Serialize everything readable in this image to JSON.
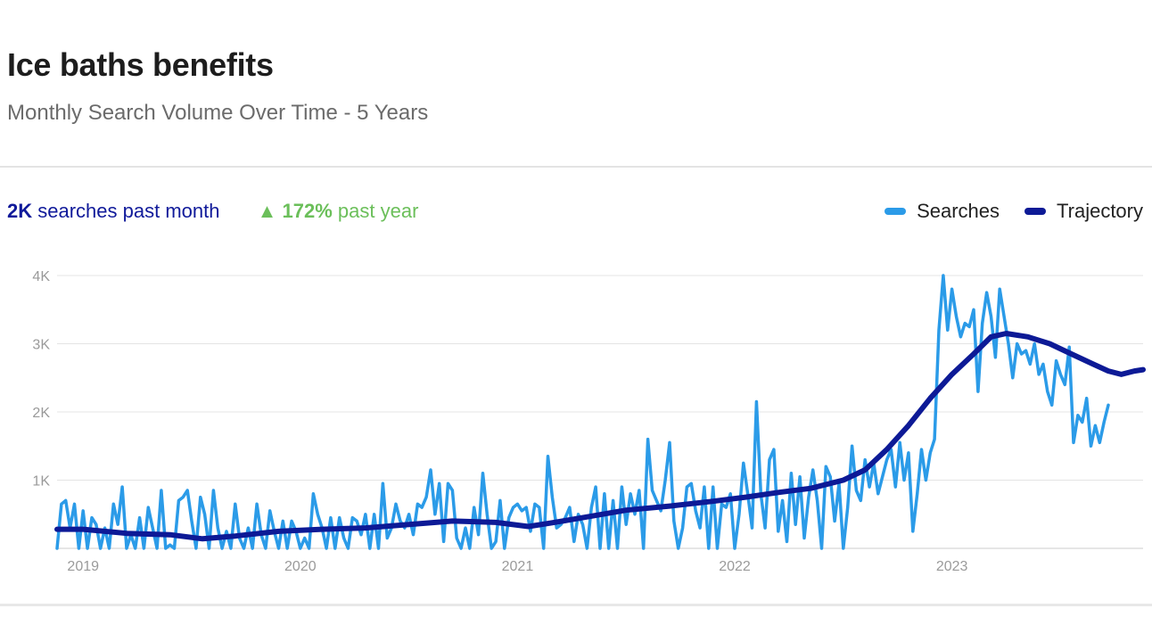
{
  "header": {
    "title": "Ice baths benefits",
    "subtitle": "Monthly Search Volume Over Time - 5 Years"
  },
  "stats": {
    "volume_value": "2K",
    "volume_label": "searches past month",
    "change_arrow": "▲",
    "change_value": "172%",
    "change_label": "past year"
  },
  "colors": {
    "searches": "#2b9be8",
    "trajectory": "#0d1a96",
    "grid": "#e4e4e4",
    "axis_text": "#9a9a9a"
  },
  "chart_data": {
    "type": "line",
    "x_unit": "decimal-year",
    "x_range": [
      2018.88,
      2023.88
    ],
    "ylim": [
      0,
      4000
    ],
    "y_ticks": [
      {
        "value": 1000,
        "label": "1K"
      },
      {
        "value": 2000,
        "label": "2K"
      },
      {
        "value": 3000,
        "label": "3K"
      },
      {
        "value": 4000,
        "label": "4K"
      }
    ],
    "x_ticks": [
      {
        "value": 2019.0,
        "label": "2019"
      },
      {
        "value": 2020.0,
        "label": "2020"
      },
      {
        "value": 2021.0,
        "label": "2021"
      },
      {
        "value": 2022.0,
        "label": "2022"
      },
      {
        "value": 2023.0,
        "label": "2023"
      }
    ],
    "grid": true,
    "legend_position": "top-right",
    "series": [
      {
        "name": "Searches",
        "points": [
          [
            2018.88,
            0
          ],
          [
            2018.9,
            650
          ],
          [
            2018.92,
            700
          ],
          [
            2018.94,
            300
          ],
          [
            2018.96,
            650
          ],
          [
            2018.98,
            0
          ],
          [
            2019.0,
            550
          ],
          [
            2019.02,
            0
          ],
          [
            2019.04,
            450
          ],
          [
            2019.06,
            350
          ],
          [
            2019.08,
            0
          ],
          [
            2019.1,
            300
          ],
          [
            2019.12,
            0
          ],
          [
            2019.14,
            650
          ],
          [
            2019.16,
            350
          ],
          [
            2019.18,
            900
          ],
          [
            2019.2,
            0
          ],
          [
            2019.22,
            200
          ],
          [
            2019.24,
            0
          ],
          [
            2019.26,
            450
          ],
          [
            2019.28,
            0
          ],
          [
            2019.3,
            600
          ],
          [
            2019.32,
            300
          ],
          [
            2019.34,
            0
          ],
          [
            2019.36,
            850
          ],
          [
            2019.38,
            0
          ],
          [
            2019.4,
            50
          ],
          [
            2019.42,
            0
          ],
          [
            2019.44,
            700
          ],
          [
            2019.46,
            750
          ],
          [
            2019.48,
            850
          ],
          [
            2019.5,
            400
          ],
          [
            2019.52,
            0
          ],
          [
            2019.54,
            750
          ],
          [
            2019.56,
            500
          ],
          [
            2019.58,
            0
          ],
          [
            2019.6,
            850
          ],
          [
            2019.62,
            300
          ],
          [
            2019.64,
            0
          ],
          [
            2019.66,
            250
          ],
          [
            2019.68,
            0
          ],
          [
            2019.7,
            650
          ],
          [
            2019.72,
            150
          ],
          [
            2019.74,
            0
          ],
          [
            2019.76,
            300
          ],
          [
            2019.78,
            0
          ],
          [
            2019.8,
            650
          ],
          [
            2019.82,
            200
          ],
          [
            2019.84,
            0
          ],
          [
            2019.86,
            550
          ],
          [
            2019.88,
            250
          ],
          [
            2019.9,
            0
          ],
          [
            2019.92,
            400
          ],
          [
            2019.94,
            0
          ],
          [
            2019.96,
            400
          ],
          [
            2019.98,
            250
          ],
          [
            2020.0,
            0
          ],
          [
            2020.02,
            150
          ],
          [
            2020.04,
            0
          ],
          [
            2020.06,
            800
          ],
          [
            2020.08,
            500
          ],
          [
            2020.1,
            300
          ],
          [
            2020.12,
            0
          ],
          [
            2020.14,
            450
          ],
          [
            2020.16,
            0
          ],
          [
            2020.18,
            450
          ],
          [
            2020.2,
            150
          ],
          [
            2020.22,
            0
          ],
          [
            2020.24,
            450
          ],
          [
            2020.26,
            400
          ],
          [
            2020.28,
            200
          ],
          [
            2020.3,
            500
          ],
          [
            2020.32,
            0
          ],
          [
            2020.34,
            500
          ],
          [
            2020.36,
            0
          ],
          [
            2020.38,
            950
          ],
          [
            2020.4,
            150
          ],
          [
            2020.42,
            300
          ],
          [
            2020.44,
            650
          ],
          [
            2020.46,
            400
          ],
          [
            2020.48,
            300
          ],
          [
            2020.5,
            500
          ],
          [
            2020.52,
            200
          ],
          [
            2020.54,
            650
          ],
          [
            2020.56,
            600
          ],
          [
            2020.58,
            750
          ],
          [
            2020.6,
            1150
          ],
          [
            2020.62,
            500
          ],
          [
            2020.64,
            950
          ],
          [
            2020.66,
            100
          ],
          [
            2020.68,
            950
          ],
          [
            2020.7,
            850
          ],
          [
            2020.72,
            150
          ],
          [
            2020.74,
            0
          ],
          [
            2020.76,
            300
          ],
          [
            2020.78,
            0
          ],
          [
            2020.8,
            600
          ],
          [
            2020.82,
            200
          ],
          [
            2020.84,
            1100
          ],
          [
            2020.86,
            500
          ],
          [
            2020.88,
            0
          ],
          [
            2020.9,
            100
          ],
          [
            2020.92,
            700
          ],
          [
            2020.94,
            0
          ],
          [
            2020.96,
            450
          ],
          [
            2020.98,
            600
          ],
          [
            2021.0,
            650
          ],
          [
            2021.02,
            550
          ],
          [
            2021.04,
            600
          ],
          [
            2021.06,
            250
          ],
          [
            2021.08,
            650
          ],
          [
            2021.1,
            600
          ],
          [
            2021.12,
            0
          ],
          [
            2021.14,
            1350
          ],
          [
            2021.16,
            750
          ],
          [
            2021.18,
            300
          ],
          [
            2021.2,
            350
          ],
          [
            2021.22,
            450
          ],
          [
            2021.24,
            600
          ],
          [
            2021.26,
            100
          ],
          [
            2021.28,
            500
          ],
          [
            2021.3,
            350
          ],
          [
            2021.32,
            0
          ],
          [
            2021.34,
            600
          ],
          [
            2021.36,
            900
          ],
          [
            2021.38,
            0
          ],
          [
            2021.4,
            800
          ],
          [
            2021.42,
            0
          ],
          [
            2021.44,
            700
          ],
          [
            2021.46,
            0
          ],
          [
            2021.48,
            900
          ],
          [
            2021.5,
            350
          ],
          [
            2021.52,
            800
          ],
          [
            2021.54,
            500
          ],
          [
            2021.56,
            850
          ],
          [
            2021.58,
            0
          ],
          [
            2021.6,
            1600
          ],
          [
            2021.62,
            850
          ],
          [
            2021.64,
            700
          ],
          [
            2021.66,
            550
          ],
          [
            2021.68,
            1000
          ],
          [
            2021.7,
            1550
          ],
          [
            2021.72,
            400
          ],
          [
            2021.74,
            0
          ],
          [
            2021.76,
            300
          ],
          [
            2021.78,
            900
          ],
          [
            2021.8,
            950
          ],
          [
            2021.82,
            550
          ],
          [
            2021.84,
            300
          ],
          [
            2021.86,
            900
          ],
          [
            2021.88,
            0
          ],
          [
            2021.9,
            900
          ],
          [
            2021.92,
            0
          ],
          [
            2021.94,
            650
          ],
          [
            2021.96,
            600
          ],
          [
            2021.98,
            800
          ],
          [
            2022.0,
            0
          ],
          [
            2022.02,
            500
          ],
          [
            2022.04,
            1250
          ],
          [
            2022.06,
            800
          ],
          [
            2022.08,
            300
          ],
          [
            2022.1,
            2150
          ],
          [
            2022.12,
            800
          ],
          [
            2022.14,
            300
          ],
          [
            2022.16,
            1300
          ],
          [
            2022.18,
            1450
          ],
          [
            2022.2,
            250
          ],
          [
            2022.22,
            700
          ],
          [
            2022.24,
            100
          ],
          [
            2022.26,
            1100
          ],
          [
            2022.28,
            350
          ],
          [
            2022.3,
            1050
          ],
          [
            2022.32,
            150
          ],
          [
            2022.34,
            750
          ],
          [
            2022.36,
            1150
          ],
          [
            2022.38,
            700
          ],
          [
            2022.4,
            0
          ],
          [
            2022.42,
            1200
          ],
          [
            2022.44,
            1050
          ],
          [
            2022.46,
            400
          ],
          [
            2022.48,
            950
          ],
          [
            2022.5,
            0
          ],
          [
            2022.52,
            600
          ],
          [
            2022.54,
            1500
          ],
          [
            2022.56,
            850
          ],
          [
            2022.58,
            700
          ],
          [
            2022.6,
            1300
          ],
          [
            2022.62,
            900
          ],
          [
            2022.64,
            1250
          ],
          [
            2022.66,
            800
          ],
          [
            2022.68,
            1050
          ],
          [
            2022.7,
            1300
          ],
          [
            2022.72,
            1450
          ],
          [
            2022.74,
            900
          ],
          [
            2022.76,
            1550
          ],
          [
            2022.78,
            1000
          ],
          [
            2022.8,
            1400
          ],
          [
            2022.82,
            250
          ],
          [
            2022.84,
            800
          ],
          [
            2022.86,
            1450
          ],
          [
            2022.88,
            1000
          ],
          [
            2022.9,
            1400
          ],
          [
            2022.92,
            1600
          ],
          [
            2022.94,
            3200
          ],
          [
            2022.96,
            4000
          ],
          [
            2022.98,
            3200
          ],
          [
            2023.0,
            3800
          ],
          [
            2023.02,
            3400
          ],
          [
            2023.04,
            3100
          ],
          [
            2023.06,
            3300
          ],
          [
            2023.08,
            3250
          ],
          [
            2023.1,
            3500
          ],
          [
            2023.12,
            2300
          ],
          [
            2023.14,
            3300
          ],
          [
            2023.16,
            3750
          ],
          [
            2023.18,
            3400
          ],
          [
            2023.2,
            2800
          ],
          [
            2023.22,
            3800
          ],
          [
            2023.24,
            3400
          ],
          [
            2023.26,
            3000
          ],
          [
            2023.28,
            2500
          ],
          [
            2023.3,
            3000
          ],
          [
            2023.32,
            2850
          ],
          [
            2023.34,
            2900
          ],
          [
            2023.36,
            2700
          ],
          [
            2023.38,
            3000
          ],
          [
            2023.4,
            2550
          ],
          [
            2023.42,
            2700
          ],
          [
            2023.44,
            2300
          ],
          [
            2023.46,
            2100
          ],
          [
            2023.48,
            2750
          ],
          [
            2023.5,
            2550
          ],
          [
            2023.52,
            2400
          ],
          [
            2023.54,
            2950
          ],
          [
            2023.56,
            1550
          ],
          [
            2023.58,
            1950
          ],
          [
            2023.6,
            1850
          ],
          [
            2023.62,
            2200
          ],
          [
            2023.64,
            1500
          ],
          [
            2023.66,
            1800
          ],
          [
            2023.68,
            1550
          ],
          [
            2023.7,
            1850
          ],
          [
            2023.72,
            2100
          ]
        ]
      },
      {
        "name": "Trajectory",
        "points": [
          [
            2018.88,
            280
          ],
          [
            2019.0,
            280
          ],
          [
            2019.2,
            220
          ],
          [
            2019.4,
            200
          ],
          [
            2019.55,
            140
          ],
          [
            2019.7,
            180
          ],
          [
            2019.9,
            250
          ],
          [
            2020.1,
            280
          ],
          [
            2020.3,
            300
          ],
          [
            2020.5,
            350
          ],
          [
            2020.7,
            400
          ],
          [
            2020.9,
            380
          ],
          [
            2021.05,
            320
          ],
          [
            2021.15,
            370
          ],
          [
            2021.3,
            450
          ],
          [
            2021.5,
            560
          ],
          [
            2021.7,
            620
          ],
          [
            2021.9,
            690
          ],
          [
            2022.05,
            750
          ],
          [
            2022.2,
            820
          ],
          [
            2022.35,
            880
          ],
          [
            2022.5,
            1000
          ],
          [
            2022.6,
            1150
          ],
          [
            2022.7,
            1450
          ],
          [
            2022.8,
            1800
          ],
          [
            2022.9,
            2200
          ],
          [
            2023.0,
            2550
          ],
          [
            2023.1,
            2850
          ],
          [
            2023.18,
            3100
          ],
          [
            2023.25,
            3150
          ],
          [
            2023.35,
            3100
          ],
          [
            2023.45,
            3000
          ],
          [
            2023.55,
            2850
          ],
          [
            2023.65,
            2700
          ],
          [
            2023.72,
            2600
          ],
          [
            2023.78,
            2550
          ],
          [
            2023.84,
            2600
          ],
          [
            2023.88,
            2620
          ]
        ]
      }
    ]
  }
}
